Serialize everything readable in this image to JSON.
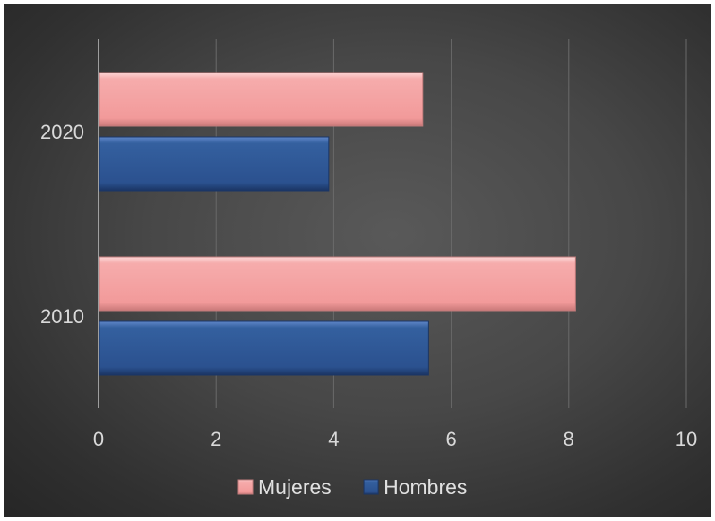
{
  "chart_data": {
    "type": "bar",
    "orientation": "horizontal",
    "categories": [
      "2010",
      "2020"
    ],
    "series": [
      {
        "name": "Hombres",
        "values": [
          5.6,
          3.9
        ],
        "color": "#2e5597"
      },
      {
        "name": "Mujeres",
        "values": [
          8.1,
          5.5
        ],
        "color": "#f4a3a3"
      }
    ],
    "xlim": [
      0,
      10
    ],
    "xticks": [
      "0",
      "2",
      "4",
      "6",
      "8",
      "10"
    ],
    "grid": true,
    "legend_position": "bottom",
    "legend_order": [
      "Mujeres",
      "Hombres"
    ],
    "background_color": "#3a3a3a"
  }
}
